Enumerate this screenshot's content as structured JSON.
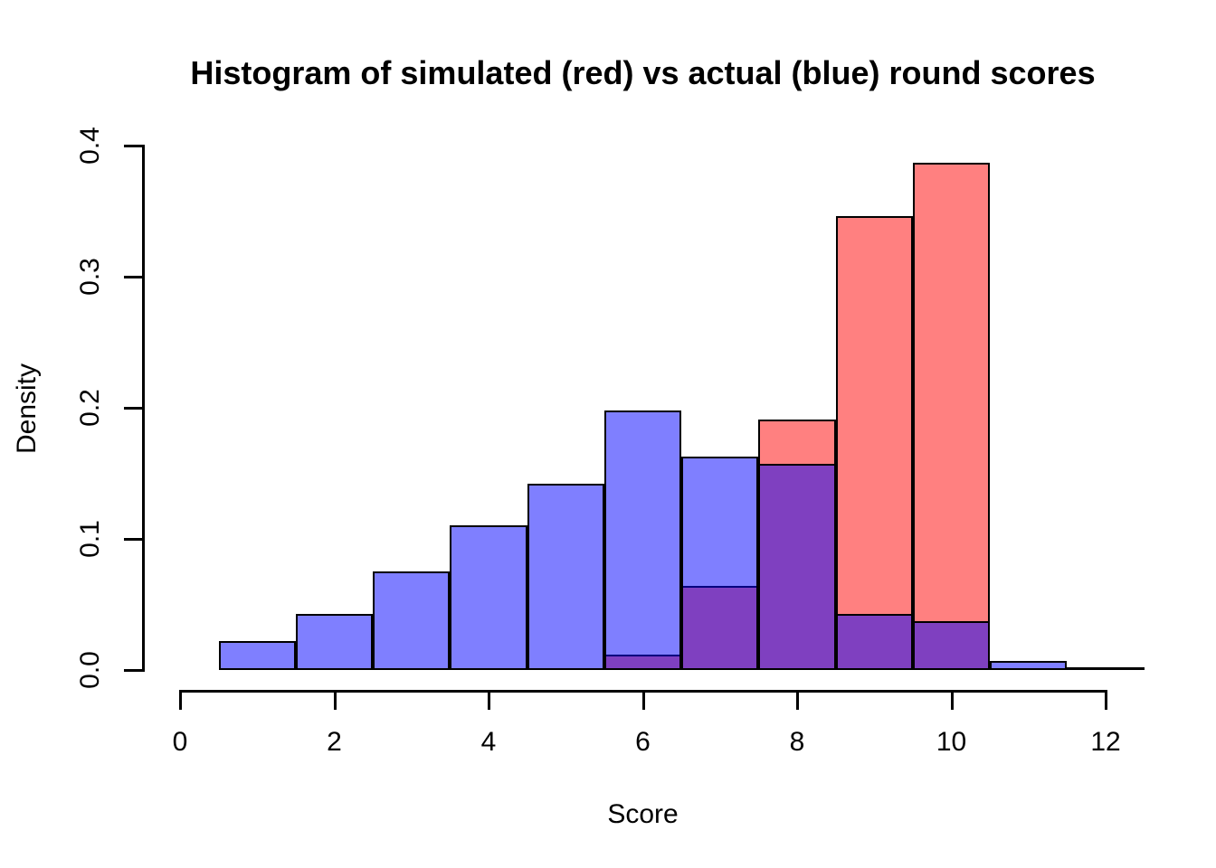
{
  "chart_data": {
    "type": "histogram",
    "title": "Histogram of simulated (red) vs actual (blue) round scores",
    "xlabel": "Score",
    "ylabel": "Density",
    "xlim": [
      0,
      12.5
    ],
    "ylim": [
      0,
      0.4
    ],
    "grid": false,
    "legend": "none (encoded in title: simulated = red, actual = blue)",
    "bin_width": 1,
    "x_ticks": [
      {
        "value": 0,
        "label": "0"
      },
      {
        "value": 2,
        "label": "2"
      },
      {
        "value": 4,
        "label": "4"
      },
      {
        "value": 6,
        "label": "6"
      },
      {
        "value": 8,
        "label": "8"
      },
      {
        "value": 10,
        "label": "10"
      },
      {
        "value": 12,
        "label": "12"
      }
    ],
    "y_ticks": [
      {
        "value": 0.0,
        "label": "0.0"
      },
      {
        "value": 0.1,
        "label": "0.1"
      },
      {
        "value": 0.2,
        "label": "0.2"
      },
      {
        "value": 0.3,
        "label": "0.3"
      },
      {
        "value": 0.4,
        "label": "0.4"
      }
    ],
    "series": [
      {
        "name": "simulated",
        "color_over_white": "#FF8080",
        "fill": "#FF8080",
        "border": "#000000",
        "bins": [
          {
            "from": 5.5,
            "to": 6.5,
            "density": 0.012
          },
          {
            "from": 6.5,
            "to": 7.5,
            "density": 0.064
          },
          {
            "from": 7.5,
            "to": 8.5,
            "density": 0.191
          },
          {
            "from": 8.5,
            "to": 9.5,
            "density": 0.346
          },
          {
            "from": 9.5,
            "to": 10.5,
            "density": 0.387
          }
        ]
      },
      {
        "name": "actual",
        "color_over_white": "#8080FF",
        "fill": "rgba(0,0,255,0.5)",
        "border": "#000000",
        "bins": [
          {
            "from": 0.5,
            "to": 1.5,
            "density": 0.022
          },
          {
            "from": 1.5,
            "to": 2.5,
            "density": 0.043
          },
          {
            "from": 2.5,
            "to": 3.5,
            "density": 0.075
          },
          {
            "from": 3.5,
            "to": 4.5,
            "density": 0.11
          },
          {
            "from": 4.5,
            "to": 5.5,
            "density": 0.142
          },
          {
            "from": 5.5,
            "to": 6.5,
            "density": 0.198
          },
          {
            "from": 6.5,
            "to": 7.5,
            "density": 0.163
          },
          {
            "from": 7.5,
            "to": 8.5,
            "density": 0.157
          },
          {
            "from": 8.5,
            "to": 9.5,
            "density": 0.043
          },
          {
            "from": 9.5,
            "to": 10.5,
            "density": 0.037
          },
          {
            "from": 10.5,
            "to": 11.5,
            "density": 0.007
          },
          {
            "from": 11.5,
            "to": 12.5,
            "density": 0.0
          }
        ]
      }
    ],
    "overlap_color": "#7F40BF",
    "draw_order": [
      "simulated",
      "actual"
    ]
  }
}
